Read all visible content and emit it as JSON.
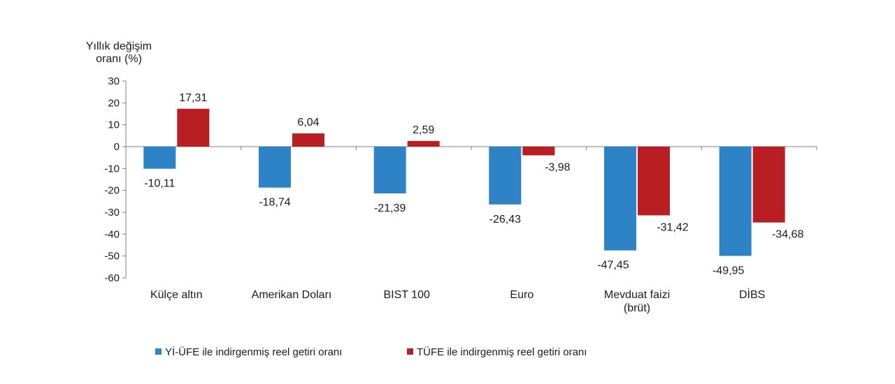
{
  "chart_data": {
    "type": "bar",
    "ylabel_lines": [
      "Yıllık değişim",
      "oranı (%)"
    ],
    "ylim": [
      -60,
      30
    ],
    "yticks": [
      30,
      20,
      10,
      0,
      -10,
      -20,
      -30,
      -40,
      -50,
      -60
    ],
    "categories": [
      [
        "Külçe altın"
      ],
      [
        "Amerikan Doları"
      ],
      [
        "BIST 100"
      ],
      [
        "Euro"
      ],
      [
        "Mevduat faizi",
        "(brüt)"
      ],
      [
        "DİBS"
      ]
    ],
    "series": [
      {
        "name": "Yİ-ÜFE ile indirgenmiş reel getiri oranı",
        "color": "#2e83c6",
        "values": [
          -10.11,
          -18.74,
          -21.39,
          -26.43,
          -47.45,
          -49.95
        ],
        "labels": [
          "-10,11",
          "-18,74",
          "-21,39",
          "-26,43",
          "-47,45",
          "-49,95"
        ]
      },
      {
        "name": "TÜFE ile indirgenmiş reel getiri oranı",
        "color": "#b81e22",
        "values": [
          17.31,
          6.04,
          2.59,
          -3.98,
          -31.42,
          -34.68
        ],
        "labels": [
          "17,31",
          "6,04",
          "2,59",
          "-3,98",
          "-31,42",
          "-34,68"
        ]
      }
    ],
    "legend_position": "bottom"
  }
}
